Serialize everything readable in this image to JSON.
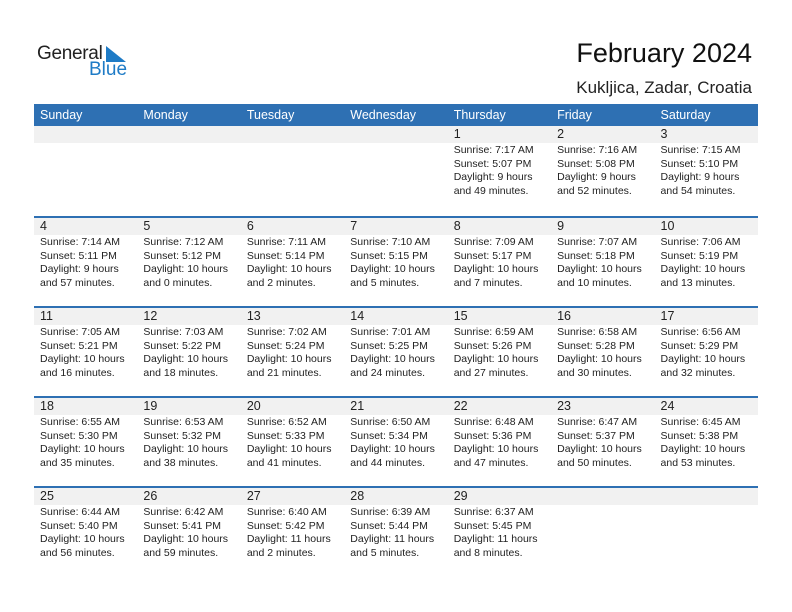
{
  "logo": {
    "word1": "General",
    "word2": "Blue",
    "accent": "#1e7bc6"
  },
  "header": {
    "title": "February 2024",
    "location": "Kukljica, Zadar, Croatia"
  },
  "colors": {
    "header_bg": "#2e70b3",
    "day_strip": "#f1f1f1"
  },
  "weekdays": [
    "Sunday",
    "Monday",
    "Tuesday",
    "Wednesday",
    "Thursday",
    "Friday",
    "Saturday"
  ],
  "weeks": [
    [
      null,
      null,
      null,
      null,
      {
        "day": "1",
        "sunrise": "Sunrise: 7:17 AM",
        "sunset": "Sunset: 5:07 PM",
        "daylight": "Daylight: 9 hours",
        "daylight2": "and 49 minutes."
      },
      {
        "day": "2",
        "sunrise": "Sunrise: 7:16 AM",
        "sunset": "Sunset: 5:08 PM",
        "daylight": "Daylight: 9 hours",
        "daylight2": "and 52 minutes."
      },
      {
        "day": "3",
        "sunrise": "Sunrise: 7:15 AM",
        "sunset": "Sunset: 5:10 PM",
        "daylight": "Daylight: 9 hours",
        "daylight2": "and 54 minutes."
      }
    ],
    [
      {
        "day": "4",
        "sunrise": "Sunrise: 7:14 AM",
        "sunset": "Sunset: 5:11 PM",
        "daylight": "Daylight: 9 hours",
        "daylight2": "and 57 minutes."
      },
      {
        "day": "5",
        "sunrise": "Sunrise: 7:12 AM",
        "sunset": "Sunset: 5:12 PM",
        "daylight": "Daylight: 10 hours",
        "daylight2": "and 0 minutes."
      },
      {
        "day": "6",
        "sunrise": "Sunrise: 7:11 AM",
        "sunset": "Sunset: 5:14 PM",
        "daylight": "Daylight: 10 hours",
        "daylight2": "and 2 minutes."
      },
      {
        "day": "7",
        "sunrise": "Sunrise: 7:10 AM",
        "sunset": "Sunset: 5:15 PM",
        "daylight": "Daylight: 10 hours",
        "daylight2": "and 5 minutes."
      },
      {
        "day": "8",
        "sunrise": "Sunrise: 7:09 AM",
        "sunset": "Sunset: 5:17 PM",
        "daylight": "Daylight: 10 hours",
        "daylight2": "and 7 minutes."
      },
      {
        "day": "9",
        "sunrise": "Sunrise: 7:07 AM",
        "sunset": "Sunset: 5:18 PM",
        "daylight": "Daylight: 10 hours",
        "daylight2": "and 10 minutes."
      },
      {
        "day": "10",
        "sunrise": "Sunrise: 7:06 AM",
        "sunset": "Sunset: 5:19 PM",
        "daylight": "Daylight: 10 hours",
        "daylight2": "and 13 minutes."
      }
    ],
    [
      {
        "day": "11",
        "sunrise": "Sunrise: 7:05 AM",
        "sunset": "Sunset: 5:21 PM",
        "daylight": "Daylight: 10 hours",
        "daylight2": "and 16 minutes."
      },
      {
        "day": "12",
        "sunrise": "Sunrise: 7:03 AM",
        "sunset": "Sunset: 5:22 PM",
        "daylight": "Daylight: 10 hours",
        "daylight2": "and 18 minutes."
      },
      {
        "day": "13",
        "sunrise": "Sunrise: 7:02 AM",
        "sunset": "Sunset: 5:24 PM",
        "daylight": "Daylight: 10 hours",
        "daylight2": "and 21 minutes."
      },
      {
        "day": "14",
        "sunrise": "Sunrise: 7:01 AM",
        "sunset": "Sunset: 5:25 PM",
        "daylight": "Daylight: 10 hours",
        "daylight2": "and 24 minutes."
      },
      {
        "day": "15",
        "sunrise": "Sunrise: 6:59 AM",
        "sunset": "Sunset: 5:26 PM",
        "daylight": "Daylight: 10 hours",
        "daylight2": "and 27 minutes."
      },
      {
        "day": "16",
        "sunrise": "Sunrise: 6:58 AM",
        "sunset": "Sunset: 5:28 PM",
        "daylight": "Daylight: 10 hours",
        "daylight2": "and 30 minutes."
      },
      {
        "day": "17",
        "sunrise": "Sunrise: 6:56 AM",
        "sunset": "Sunset: 5:29 PM",
        "daylight": "Daylight: 10 hours",
        "daylight2": "and 32 minutes."
      }
    ],
    [
      {
        "day": "18",
        "sunrise": "Sunrise: 6:55 AM",
        "sunset": "Sunset: 5:30 PM",
        "daylight": "Daylight: 10 hours",
        "daylight2": "and 35 minutes."
      },
      {
        "day": "19",
        "sunrise": "Sunrise: 6:53 AM",
        "sunset": "Sunset: 5:32 PM",
        "daylight": "Daylight: 10 hours",
        "daylight2": "and 38 minutes."
      },
      {
        "day": "20",
        "sunrise": "Sunrise: 6:52 AM",
        "sunset": "Sunset: 5:33 PM",
        "daylight": "Daylight: 10 hours",
        "daylight2": "and 41 minutes."
      },
      {
        "day": "21",
        "sunrise": "Sunrise: 6:50 AM",
        "sunset": "Sunset: 5:34 PM",
        "daylight": "Daylight: 10 hours",
        "daylight2": "and 44 minutes."
      },
      {
        "day": "22",
        "sunrise": "Sunrise: 6:48 AM",
        "sunset": "Sunset: 5:36 PM",
        "daylight": "Daylight: 10 hours",
        "daylight2": "and 47 minutes."
      },
      {
        "day": "23",
        "sunrise": "Sunrise: 6:47 AM",
        "sunset": "Sunset: 5:37 PM",
        "daylight": "Daylight: 10 hours",
        "daylight2": "and 50 minutes."
      },
      {
        "day": "24",
        "sunrise": "Sunrise: 6:45 AM",
        "sunset": "Sunset: 5:38 PM",
        "daylight": "Daylight: 10 hours",
        "daylight2": "and 53 minutes."
      }
    ],
    [
      {
        "day": "25",
        "sunrise": "Sunrise: 6:44 AM",
        "sunset": "Sunset: 5:40 PM",
        "daylight": "Daylight: 10 hours",
        "daylight2": "and 56 minutes."
      },
      {
        "day": "26",
        "sunrise": "Sunrise: 6:42 AM",
        "sunset": "Sunset: 5:41 PM",
        "daylight": "Daylight: 10 hours",
        "daylight2": "and 59 minutes."
      },
      {
        "day": "27",
        "sunrise": "Sunrise: 6:40 AM",
        "sunset": "Sunset: 5:42 PM",
        "daylight": "Daylight: 11 hours",
        "daylight2": "and 2 minutes."
      },
      {
        "day": "28",
        "sunrise": "Sunrise: 6:39 AM",
        "sunset": "Sunset: 5:44 PM",
        "daylight": "Daylight: 11 hours",
        "daylight2": "and 5 minutes."
      },
      {
        "day": "29",
        "sunrise": "Sunrise: 6:37 AM",
        "sunset": "Sunset: 5:45 PM",
        "daylight": "Daylight: 11 hours",
        "daylight2": "and 8 minutes."
      },
      null,
      null
    ]
  ]
}
